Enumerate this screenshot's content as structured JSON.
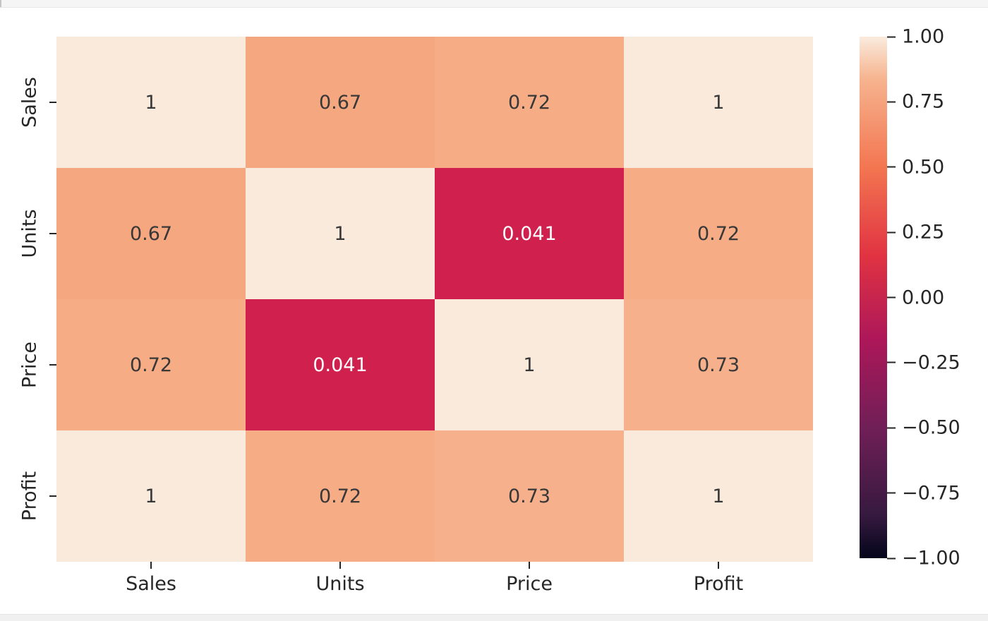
{
  "window": {
    "background": "#ffffff",
    "top_strip_color": "#f5f5f6",
    "bottom_strip_color": "#f0f0f1"
  },
  "chart_data": {
    "type": "heatmap",
    "title": "",
    "categories": [
      "Sales",
      "Units",
      "Price",
      "Profit"
    ],
    "x_tick_labels": [
      "Sales",
      "Units",
      "Price",
      "Profit"
    ],
    "y_tick_labels": [
      "Sales",
      "Units",
      "Price",
      "Profit"
    ],
    "matrix": [
      [
        1,
        0.67,
        0.72,
        1
      ],
      [
        0.67,
        1,
        0.041,
        0.72
      ],
      [
        0.72,
        0.041,
        1,
        0.73
      ],
      [
        1,
        0.72,
        0.73,
        1
      ]
    ],
    "cell_labels": [
      [
        "1",
        "0.67",
        "0.72",
        "1"
      ],
      [
        "0.67",
        "1",
        "0.041",
        "0.72"
      ],
      [
        "0.72",
        "0.041",
        "1",
        "0.73"
      ],
      [
        "1",
        "0.72",
        "0.73",
        "1"
      ]
    ],
    "cell_colors": [
      [
        "#faeadc",
        "#f5a77f",
        "#f6ac85",
        "#faeadc"
      ],
      [
        "#f5a77f",
        "#faeadc",
        "#d0204e",
        "#f6ac85"
      ],
      [
        "#f6ac85",
        "#d0204e",
        "#faeadc",
        "#f6b18c"
      ],
      [
        "#faeadc",
        "#f6ac85",
        "#f6b18c",
        "#faeadc"
      ]
    ],
    "cell_text_colors": [
      [
        "#383838",
        "#383838",
        "#383838",
        "#383838"
      ],
      [
        "#383838",
        "#383838",
        "#ffffff",
        "#383838"
      ],
      [
        "#383838",
        "#ffffff",
        "#383838",
        "#383838"
      ],
      [
        "#383838",
        "#383838",
        "#383838",
        "#383838"
      ]
    ],
    "colormap": "rocket",
    "vmin": -1,
    "vmax": 1,
    "colorbar_ticks": [
      "1.00",
      "0.75",
      "0.50",
      "0.25",
      "0.00",
      "−0.25",
      "−0.50",
      "−0.75",
      "−1.00"
    ],
    "colorbar_gradient_stops": [
      {
        "pos": 0,
        "color": "#03051a"
      },
      {
        "pos": 8,
        "color": "#35193e"
      },
      {
        "pos": 25,
        "color": "#701f57"
      },
      {
        "pos": 42,
        "color": "#ad1759"
      },
      {
        "pos": 58,
        "color": "#e13342"
      },
      {
        "pos": 75,
        "color": "#f37651"
      },
      {
        "pos": 92,
        "color": "#f6b48f"
      },
      {
        "pos": 100,
        "color": "#faebdd"
      }
    ],
    "axis_text_color": "#262626",
    "tick_mark_color": "#262626"
  }
}
